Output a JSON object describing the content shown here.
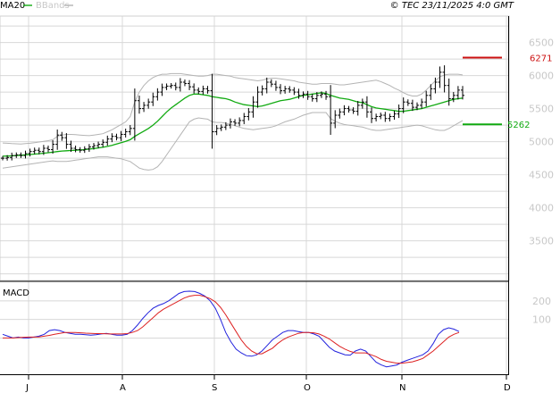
{
  "header": {
    "indicator_label": "MA20",
    "bands_label": "BBands",
    "copyright": "© TEC 23/11/2025 4:0 GMT"
  },
  "colors": {
    "price": "#000000",
    "ma": "#11aa11",
    "bands": "#b4b4b4",
    "grid": "#d8d8d8",
    "macd": "#2222dd",
    "signal": "#dd2222",
    "resistance": "#cc1111",
    "support": "#11aa11",
    "axis_text": "#c0c0c0"
  },
  "chart_data": [
    {
      "type": "candlestick-ohlc",
      "x_labels": [
        "J",
        "A",
        "S",
        "O",
        "N",
        "D"
      ],
      "ylim": [
        2900,
        6900
      ],
      "y_ticks": [
        3500,
        4000,
        4500,
        5000,
        5500,
        6000,
        6500
      ],
      "grid": true,
      "close": [
        4750,
        4760,
        4790,
        4800,
        4790,
        4820,
        4850,
        4870,
        4850,
        4900,
        4880,
        4960,
        5100,
        5060,
        4960,
        4900,
        4880,
        4870,
        4890,
        4920,
        4940,
        4960,
        4990,
        5040,
        5080,
        5060,
        5110,
        5150,
        5200,
        5620,
        5500,
        5550,
        5600,
        5680,
        5750,
        5820,
        5840,
        5850,
        5820,
        5900,
        5880,
        5830,
        5780,
        5760,
        5800,
        5770,
        5150,
        5200,
        5220,
        5250,
        5300,
        5280,
        5320,
        5380,
        5450,
        5600,
        5750,
        5800,
        5900,
        5870,
        5820,
        5770,
        5800,
        5780,
        5750,
        5700,
        5720,
        5680,
        5650,
        5700,
        5720,
        5680,
        5280,
        5400,
        5450,
        5500,
        5480,
        5460,
        5550,
        5600,
        5450,
        5350,
        5380,
        5400,
        5350,
        5380,
        5420,
        5500,
        5600,
        5580,
        5520,
        5550,
        5600,
        5700,
        5800,
        5900,
        6050,
        5850,
        5650,
        5700,
        5780,
        5700
      ],
      "ma20": [
        4780,
        4782,
        4785,
        4790,
        4795,
        4800,
        4806,
        4812,
        4818,
        4825,
        4832,
        4840,
        4850,
        4858,
        4862,
        4866,
        4870,
        4874,
        4880,
        4888,
        4896,
        4905,
        4915,
        4928,
        4945,
        4965,
        4985,
        5005,
        5030,
        5080,
        5120,
        5160,
        5200,
        5250,
        5310,
        5380,
        5450,
        5510,
        5560,
        5610,
        5660,
        5700,
        5720,
        5720,
        5710,
        5700,
        5680,
        5670,
        5660,
        5650,
        5630,
        5600,
        5580,
        5560,
        5550,
        5540,
        5530,
        5540,
        5560,
        5580,
        5600,
        5620,
        5630,
        5640,
        5660,
        5680,
        5700,
        5710,
        5720,
        5730,
        5740,
        5730,
        5700,
        5680,
        5660,
        5650,
        5640,
        5620,
        5600,
        5590,
        5560,
        5530,
        5510,
        5500,
        5490,
        5480,
        5470,
        5460,
        5460,
        5470,
        5480,
        5490,
        5500,
        5520,
        5540,
        5560,
        5580,
        5600,
        5620,
        5640,
        5650,
        5660
      ],
      "bb_upper": [
        4980,
        4975,
        4970,
        4968,
        4965,
        4970,
        4975,
        4985,
        4995,
        5005,
        5015,
        5030,
        5080,
        5100,
        5110,
        5110,
        5105,
        5100,
        5095,
        5090,
        5100,
        5110,
        5120,
        5150,
        5180,
        5220,
        5260,
        5300,
        5380,
        5600,
        5750,
        5850,
        5920,
        5970,
        6000,
        6020,
        6020,
        6030,
        6030,
        6030,
        6020,
        6010,
        6000,
        5990,
        5990,
        6000,
        6020,
        6020,
        6010,
        6000,
        5990,
        5970,
        5960,
        5950,
        5940,
        5930,
        5920,
        5930,
        5950,
        5960,
        5960,
        5950,
        5940,
        5930,
        5920,
        5900,
        5890,
        5880,
        5870,
        5870,
        5880,
        5880,
        5880,
        5870,
        5860,
        5860,
        5870,
        5880,
        5890,
        5900,
        5910,
        5920,
        5930,
        5910,
        5880,
        5850,
        5810,
        5780,
        5740,
        5710,
        5690,
        5690,
        5720,
        5780,
        5850,
        5920,
        5980,
        6010,
        6020,
        6020,
        6020,
        6010
      ],
      "bb_lower": [
        4600,
        4610,
        4620,
        4630,
        4640,
        4650,
        4660,
        4670,
        4680,
        4690,
        4700,
        4710,
        4700,
        4700,
        4700,
        4710,
        4720,
        4730,
        4740,
        4750,
        4760,
        4770,
        4770,
        4770,
        4760,
        4750,
        4740,
        4720,
        4700,
        4650,
        4600,
        4580,
        4570,
        4580,
        4620,
        4700,
        4800,
        4900,
        5000,
        5100,
        5200,
        5300,
        5340,
        5360,
        5350,
        5340,
        5300,
        5290,
        5290,
        5280,
        5260,
        5240,
        5220,
        5200,
        5190,
        5180,
        5190,
        5200,
        5210,
        5220,
        5240,
        5270,
        5300,
        5320,
        5340,
        5370,
        5400,
        5420,
        5440,
        5440,
        5440,
        5440,
        5350,
        5310,
        5280,
        5260,
        5250,
        5240,
        5230,
        5220,
        5200,
        5180,
        5170,
        5170,
        5180,
        5190,
        5200,
        5210,
        5220,
        5230,
        5240,
        5250,
        5240,
        5220,
        5200,
        5180,
        5170,
        5170,
        5200,
        5240,
        5280,
        5320
      ],
      "resistance": {
        "value": 6271,
        "label": "6271"
      },
      "support": {
        "value": 5262,
        "label": "5262"
      }
    },
    {
      "type": "line",
      "title": "MACD",
      "ylim": [
        -190,
        300
      ],
      "y_ticks": [
        100,
        200
      ],
      "series": [
        {
          "key": "macd",
          "values": [
            20,
            10,
            0,
            5,
            0,
            0,
            5,
            10,
            20,
            40,
            45,
            40,
            30,
            25,
            20,
            20,
            18,
            15,
            18,
            22,
            25,
            20,
            15,
            15,
            20,
            40,
            70,
            105,
            135,
            160,
            175,
            185,
            200,
            220,
            240,
            250,
            252,
            250,
            240,
            225,
            200,
            160,
            100,
            30,
            -20,
            -60,
            -80,
            -95,
            -98,
            -90,
            -70,
            -40,
            -10,
            10,
            30,
            40,
            40,
            35,
            30,
            30,
            22,
            10,
            -20,
            -50,
            -70,
            -80,
            -90,
            -92,
            -70,
            -60,
            -70,
            -100,
            -130,
            -145,
            -155,
            -150,
            -145,
            -130,
            -120,
            -110,
            -100,
            -90,
            -70,
            -30,
            20,
            45,
            55,
            48,
            35
          ],
          "name": ""
        },
        {
          "key": "signal",
          "values": [
            0,
            0,
            0,
            2,
            4,
            5,
            5,
            6,
            10,
            14,
            20,
            25,
            30,
            30,
            30,
            28,
            26,
            25,
            24,
            24,
            23,
            22,
            22,
            22,
            24,
            30,
            40,
            60,
            85,
            110,
            135,
            155,
            170,
            185,
            200,
            215,
            225,
            230,
            230,
            222,
            212,
            195,
            165,
            125,
            80,
            35,
            -10,
            -45,
            -70,
            -85,
            -85,
            -70,
            -55,
            -30,
            -10,
            5,
            15,
            25,
            30,
            30,
            28,
            22,
            10,
            -5,
            -25,
            -45,
            -60,
            -72,
            -80,
            -80,
            -80,
            -90,
            -100,
            -115,
            -125,
            -130,
            -135,
            -135,
            -132,
            -128,
            -120,
            -110,
            -90,
            -70,
            -45,
            -20,
            5,
            20,
            30
          ],
          "name": ""
        }
      ]
    }
  ]
}
